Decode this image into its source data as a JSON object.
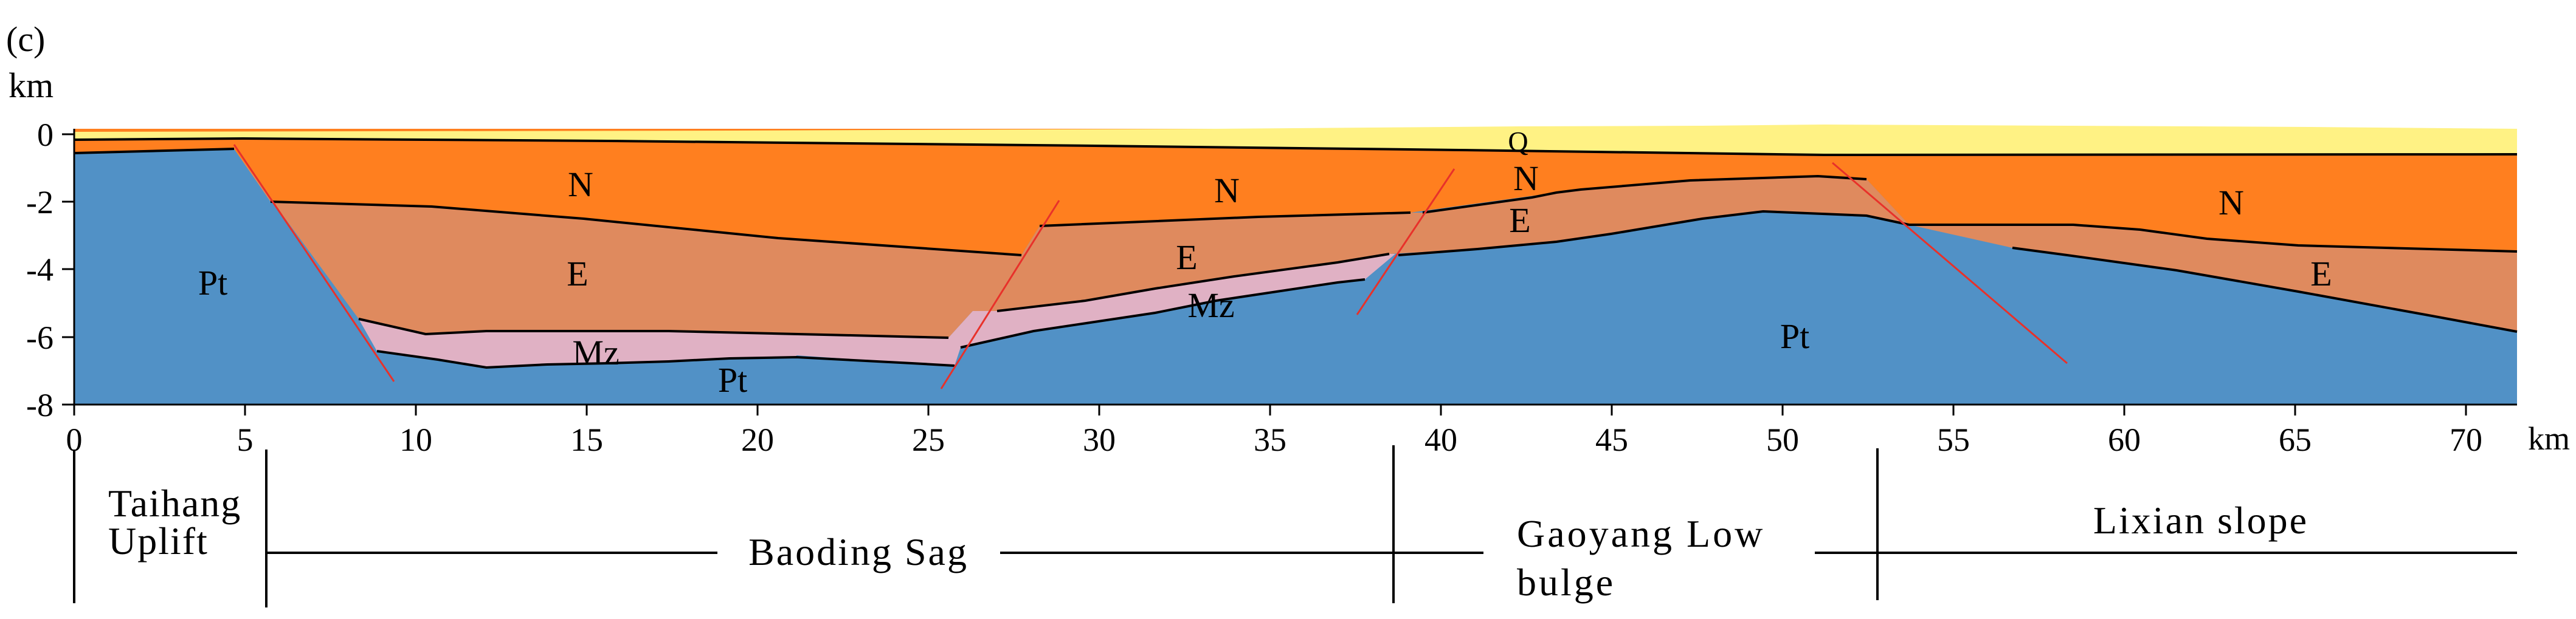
{
  "panel_label": "(c)",
  "depth_axis": {
    "unit": "km",
    "ticks": [
      "0",
      "-2",
      "-4",
      "-6",
      "-8"
    ]
  },
  "distance_axis": {
    "unit": "km",
    "ticks": [
      "0",
      "5",
      "10",
      "15",
      "20",
      "25",
      "30",
      "35",
      "40",
      "45",
      "50",
      "55",
      "60",
      "65",
      "70"
    ]
  },
  "strata_labels": {
    "q": "Q",
    "n_left": "N",
    "n_mid": "N",
    "n_high": "N",
    "n_right": "N",
    "e_left": "E",
    "e_mid": "E",
    "e_high": "E",
    "e_right": "E",
    "mz_left": "Mz",
    "mz_mid": "Mz",
    "pt_left": "Pt",
    "pt_sag": "Pt",
    "pt_center": "Pt"
  },
  "zones": {
    "taihang_line1": "Taihang",
    "taihang_line2": "Uplift",
    "baoding": "Baoding Sag",
    "gaoyang_line1": "Gaoyang Low",
    "gaoyang_line2": "bulge",
    "lixian": "Lixian slope"
  },
  "colors": {
    "quaternary": "#fff284",
    "neogene": "#ff7f1f",
    "paleogene": "#df8a5e",
    "mesozoic": "#e0b1c4",
    "proterozoic": "#5191c6",
    "fault": "#e8312a"
  }
}
